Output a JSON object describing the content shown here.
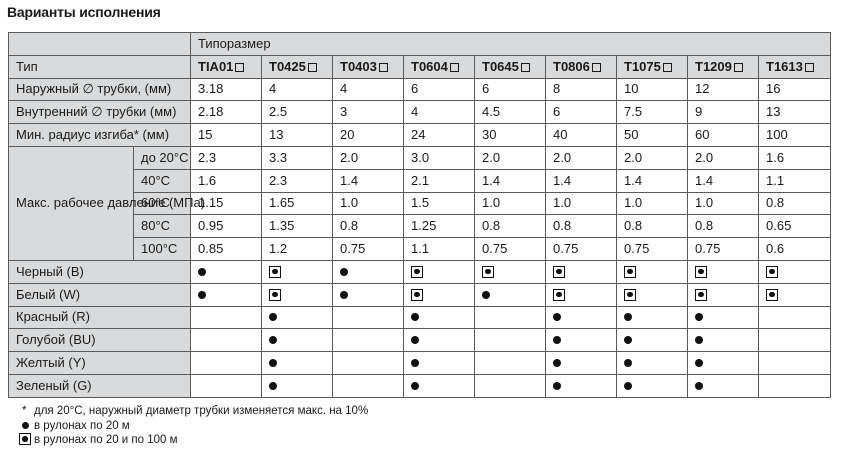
{
  "title": "Варианты исполнения",
  "header": {
    "group_label": "Типоразмер",
    "type_label": "Тип",
    "models": [
      "TIA01",
      "T0425",
      "T0403",
      "T0604",
      "T0645",
      "T0806",
      "T1075",
      "T1209",
      "T1613"
    ]
  },
  "dimension_rows": [
    {
      "label": "Наружный ∅ трубки, (мм)",
      "values": [
        "3.18",
        "4",
        "4",
        "6",
        "6",
        "8",
        "10",
        "12",
        "16"
      ]
    },
    {
      "label": "Внутренний ∅ трубки (мм)",
      "values": [
        "2.18",
        "2.5",
        "3",
        "4",
        "4.5",
        "6",
        "7.5",
        "9",
        "13"
      ]
    },
    {
      "label": "Мин. радиус изгиба* (мм)",
      "values": [
        "15",
        "13",
        "20",
        "24",
        "30",
        "40",
        "50",
        "60",
        "100"
      ]
    }
  ],
  "pressure": {
    "label": "Макс. рабочее давление (МПа)",
    "rows": [
      {
        "temp": "до 20°C",
        "values": [
          "2.3",
          "3.3",
          "2.0",
          "3.0",
          "2.0",
          "2.0",
          "2.0",
          "2.0",
          "1.6"
        ]
      },
      {
        "temp": "40°C",
        "values": [
          "1.6",
          "2.3",
          "1.4",
          "2.1",
          "1.4",
          "1.4",
          "1.4",
          "1.4",
          "1.1"
        ]
      },
      {
        "temp": "60°C",
        "values": [
          "1.15",
          "1.65",
          "1.0",
          "1.5",
          "1.0",
          "1.0",
          "1.0",
          "1.0",
          "0.8"
        ]
      },
      {
        "temp": "80°C",
        "values": [
          "0.95",
          "1.35",
          "0.8",
          "1.25",
          "0.8",
          "0.8",
          "0.8",
          "0.8",
          "0.65"
        ]
      },
      {
        "temp": "100°C",
        "values": [
          "0.85",
          "1.2",
          "0.75",
          "1.1",
          "0.75",
          "0.75",
          "0.75",
          "0.75",
          "0.6"
        ]
      }
    ]
  },
  "colors": [
    {
      "label": "Черный (B)",
      "marks": [
        "dot",
        "dotbox",
        "dot",
        "dotbox",
        "dotbox",
        "dotbox",
        "dotbox",
        "dotbox",
        "dotbox"
      ]
    },
    {
      "label": "Белый (W)",
      "marks": [
        "dot",
        "dotbox",
        "dot",
        "dotbox",
        "dot",
        "dotbox",
        "dotbox",
        "dotbox",
        "dotbox"
      ]
    },
    {
      "label": "Красный (R)",
      "marks": [
        "",
        "dot",
        "",
        "dot",
        "",
        "dot",
        "dot",
        "dot",
        ""
      ]
    },
    {
      "label": "Голубой (BU)",
      "marks": [
        "",
        "dot",
        "",
        "dot",
        "",
        "dot",
        "dot",
        "dot",
        ""
      ]
    },
    {
      "label": "Желтый (Y)",
      "marks": [
        "",
        "dot",
        "",
        "dot",
        "",
        "dot",
        "dot",
        "dot",
        ""
      ]
    },
    {
      "label": "Зеленый (G)",
      "marks": [
        "",
        "dot",
        "",
        "dot",
        "",
        "dot",
        "dot",
        "dot",
        ""
      ]
    }
  ],
  "notes": {
    "asterisk": "*",
    "asterisk_text": "для 20°C, наружный диаметр трубки изменяется макс. на 10%",
    "dot_text": "в рулонах по 20 м",
    "dotbox_text": "в рулонах по 20 и по 100 м"
  },
  "style": {
    "header_bg": "#d9dadb",
    "border": "#5a5a5a"
  }
}
